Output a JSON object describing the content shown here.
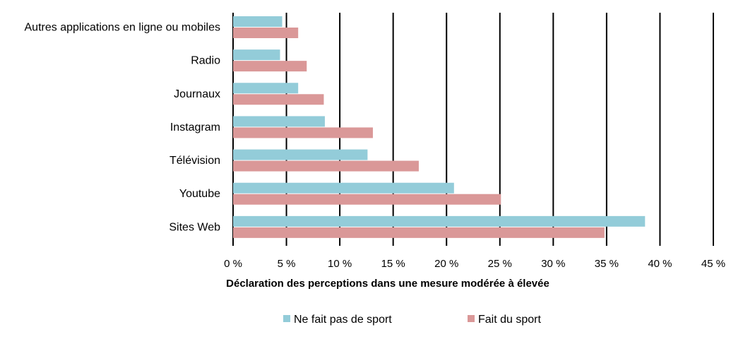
{
  "chart_data": {
    "type": "bar",
    "orientation": "horizontal",
    "categories": [
      "Autres applications en ligne ou mobiles",
      "Radio",
      "Journaux",
      "Instagram",
      "Télévision",
      "Youtube",
      "Sites Web"
    ],
    "series": [
      {
        "name": "Ne fait pas de sport",
        "color": "#93ccd9",
        "values": [
          4.6,
          4.4,
          6.1,
          8.6,
          12.6,
          20.7,
          38.6
        ]
      },
      {
        "name": "Fait du sport",
        "color": "#da9898",
        "values": [
          6.1,
          6.9,
          8.5,
          13.1,
          17.4,
          25.1,
          34.8
        ]
      }
    ],
    "xlim": [
      0,
      45
    ],
    "xticks": [
      0,
      5,
      10,
      15,
      20,
      25,
      30,
      35,
      40,
      45
    ],
    "xtick_labels": [
      "0 %",
      "5 %",
      "10 %",
      "15 %",
      "20 %",
      "25 %",
      "30 %",
      "35 %",
      "40 %",
      "45 %"
    ],
    "xlabel": "Déclaration des perceptions dans une mesure modérée à élevée",
    "ylabel": "",
    "title": "",
    "grid": "vertical",
    "legend_position": "bottom"
  }
}
